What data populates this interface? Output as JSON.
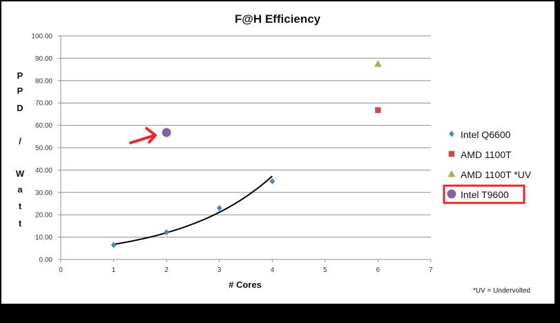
{
  "chart_data": {
    "type": "scatter",
    "title": "F@H Efficiency",
    "xlabel": "# Cores",
    "ylabel": "PPD / Watt",
    "xlim": [
      0,
      7
    ],
    "ylim": [
      0,
      100
    ],
    "x_ticks": [
      "0",
      "1",
      "2",
      "3",
      "4",
      "5",
      "6",
      "7"
    ],
    "y_ticks": [
      "0.00",
      "10.00",
      "20.00",
      "30.00",
      "40.00",
      "50.00",
      "60.00",
      "70.00",
      "80.00",
      "90.00",
      "100.00"
    ],
    "grid": true,
    "legend_position": "right",
    "series": [
      {
        "name": "Intel Q6600",
        "marker": "diamond",
        "color": "#4F81BD",
        "x": [
          1,
          2,
          3,
          4
        ],
        "y": [
          6.5,
          12.2,
          23.0,
          35.0
        ]
      },
      {
        "name": "AMD 1100T",
        "marker": "square",
        "color": "#C0504D",
        "x": [
          6
        ],
        "y": [
          66.8
        ]
      },
      {
        "name": "AMD 1100T *UV",
        "marker": "triangle",
        "color": "#9BBB59",
        "x": [
          6
        ],
        "y": [
          87.5
        ]
      },
      {
        "name": "Intel T9600",
        "marker": "circle",
        "color": "#8064A2",
        "x": [
          2
        ],
        "y": [
          56.8
        ]
      }
    ],
    "trendline": {
      "series": "Intel Q6600",
      "type": "exponential",
      "color": "#000000",
      "x_start": 1,
      "x_end": 4
    },
    "annotations": {
      "footnote": "*UV = Undervolted",
      "arrow_color": "#E8262A",
      "highlight_box_color": "#E8262A",
      "highlighted_series": "Intel T9600"
    }
  }
}
